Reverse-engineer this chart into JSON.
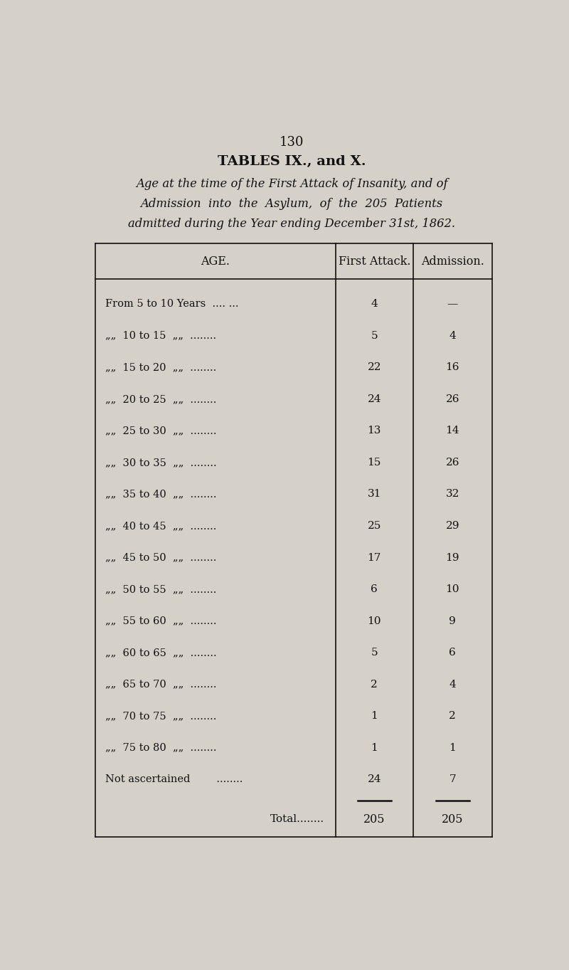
{
  "page_number": "130",
  "title": "TABLES IX., and X.",
  "subtitle_lines": [
    "Age at the time of the First Attack of Insanity, and of",
    "Admission  into  the  Asylum,  of  the  205  Patients",
    "admitted during the Year ending December 31st, 1862."
  ],
  "col_headers": [
    "AGE.",
    "First Attack.",
    "Admission."
  ],
  "rows": [
    {
      "label": "From 5 to 10 Years  .... ...",
      "first_attack": "4",
      "admission": "—"
    },
    {
      "label": "„„  10 to 15  „„  ........",
      "first_attack": "5",
      "admission": "4"
    },
    {
      "label": "„„  15 to 20  „„  ........",
      "first_attack": "22",
      "admission": "16"
    },
    {
      "label": "„„  20 to 25  „„  ........",
      "first_attack": "24",
      "admission": "26"
    },
    {
      "label": "„„  25 to 30  „„  ........",
      "first_attack": "13",
      "admission": "14"
    },
    {
      "label": "„„  30 to 35  „„  ........",
      "first_attack": "15",
      "admission": "26"
    },
    {
      "label": "„„  35 to 40  „„  ........",
      "first_attack": "31",
      "admission": "32"
    },
    {
      "label": "„„  40 to 45  „„  ........",
      "first_attack": "25",
      "admission": "29"
    },
    {
      "label": "„„  45 to 50  „„  ........",
      "first_attack": "17",
      "admission": "19"
    },
    {
      "label": "„„  50 to 55  „„  ........",
      "first_attack": "6",
      "admission": "10"
    },
    {
      "label": "„„  55 to 60  „„  ........",
      "first_attack": "10",
      "admission": "9"
    },
    {
      "label": "„„  60 to 65  „„  ........",
      "first_attack": "5",
      "admission": "6"
    },
    {
      "label": "„„  65 to 70  „„  ........",
      "first_attack": "2",
      "admission": "4"
    },
    {
      "label": "„„  70 to 75  „„  ........",
      "first_attack": "1",
      "admission": "2"
    },
    {
      "label": "„„  75 to 80  „„  ........",
      "first_attack": "1",
      "admission": "1"
    },
    {
      "label": "Not ascertained        ........",
      "first_attack": "24",
      "admission": "7"
    }
  ],
  "total_first_attack": "205",
  "total_admission": "205",
  "bg_color": "#d5d0c8",
  "text_color": "#111111"
}
